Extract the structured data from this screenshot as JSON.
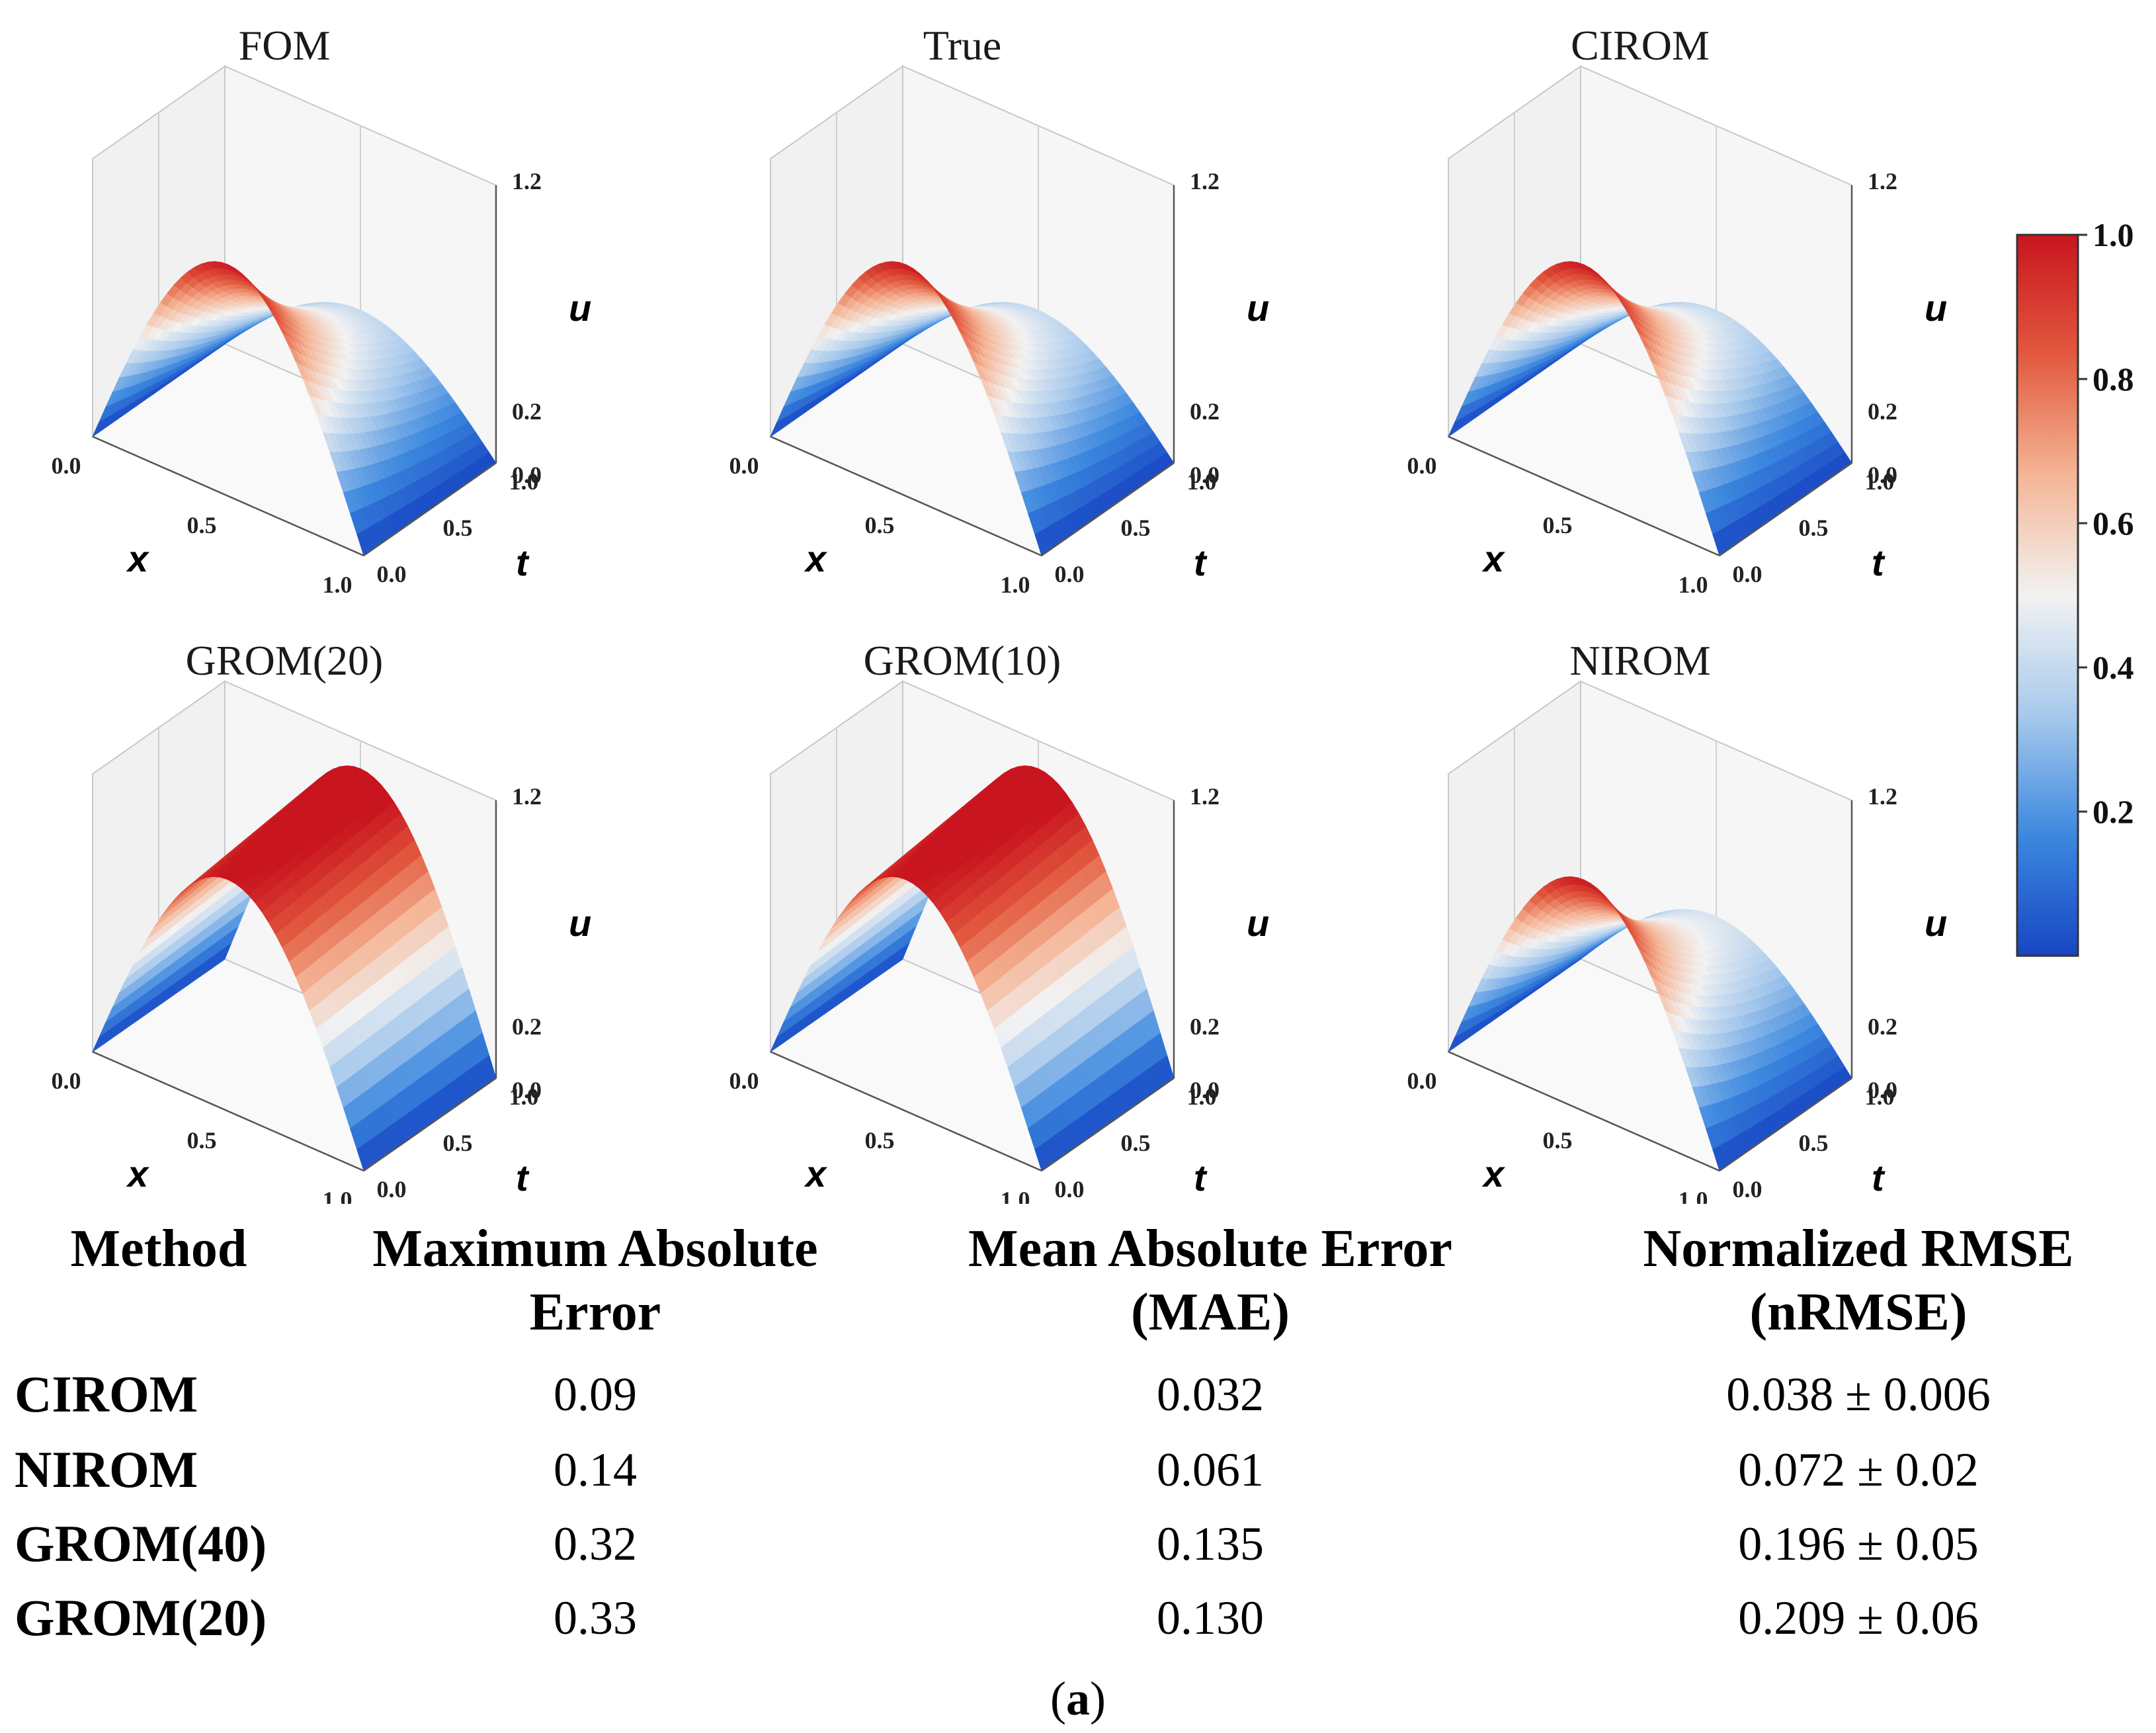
{
  "chart_data": {
    "type": "surface3d",
    "panels": [
      {
        "title": "FOM",
        "shape": "fom"
      },
      {
        "title": "True",
        "shape": "fom"
      },
      {
        "title": "CIROM",
        "shape": "fom"
      },
      {
        "title": "GROM(20)",
        "shape": "grom"
      },
      {
        "title": "GROM(10)",
        "shape": "grom"
      },
      {
        "title": "NIROM",
        "shape": "nirom"
      }
    ],
    "axes": {
      "x": {
        "label": "x",
        "ticks": [
          "0.0",
          "0.5",
          "1.0"
        ]
      },
      "t": {
        "label": "t",
        "ticks": [
          "0.0",
          "0.5",
          "1.0"
        ]
      },
      "u": {
        "label": "u",
        "ticks": [
          "0.0",
          "0.2",
          "1.2"
        ]
      }
    },
    "colorbar": {
      "ticks": [
        "1.0",
        "0.8",
        "0.6",
        "0.4",
        "0.2"
      ],
      "min": 0,
      "max": 1.0,
      "colormap": [
        "#1746c4",
        "#3c88df",
        "#a7c9ec",
        "#f2f2f2",
        "#f5b596",
        "#e2593e",
        "#c9151f"
      ]
    },
    "table": {
      "headers": [
        [
          "Method"
        ],
        [
          "Maximum Absolute",
          "Error"
        ],
        [
          "Mean Absolute Error",
          "(MAE)"
        ],
        [
          "Normalized RMSE",
          "(nRMSE)"
        ]
      ],
      "rows": [
        [
          "CIROM",
          "0.09",
          "0.032",
          "0.038 ± 0.006"
        ],
        [
          "NIROM",
          "0.14",
          "0.061",
          "0.072 ± 0.02"
        ],
        [
          "GROM(40)",
          "0.32",
          "0.135",
          "0.196 ± 0.05"
        ],
        [
          "GROM(20)",
          "0.33",
          "0.130",
          "0.209 ± 0.06"
        ]
      ]
    }
  },
  "caption": {
    "open": "(",
    "label": "a",
    "close": ")"
  }
}
